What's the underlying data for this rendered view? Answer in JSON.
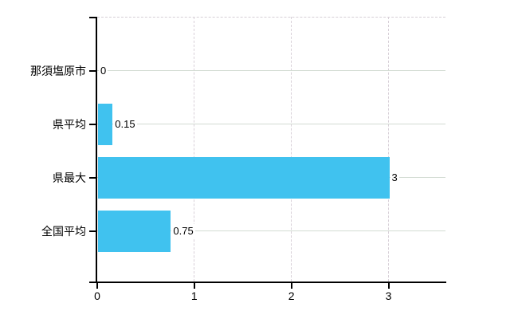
{
  "chart_data": {
    "type": "bar",
    "orientation": "horizontal",
    "title": "",
    "categories": [
      "那須塩原市",
      "県平均",
      "県最大",
      "全国平均"
    ],
    "values": [
      0,
      0.15,
      3,
      0.75
    ],
    "value_labels": [
      "0",
      "0.15",
      "3",
      "0.75"
    ],
    "x_ticks": [
      0,
      1,
      2,
      3
    ],
    "x_tick_labels": [
      "0",
      "1",
      "2",
      "3"
    ],
    "xlim": [
      0,
      3.59
    ],
    "grid": true,
    "legend": "none",
    "bar_color": "#40c2ef",
    "axis_color": "#000000",
    "h_gridline_color": "#d3dcd3",
    "v_gridline_color": "#d8d0d8",
    "text_color": "#000000",
    "background_color": "#ffffff"
  }
}
